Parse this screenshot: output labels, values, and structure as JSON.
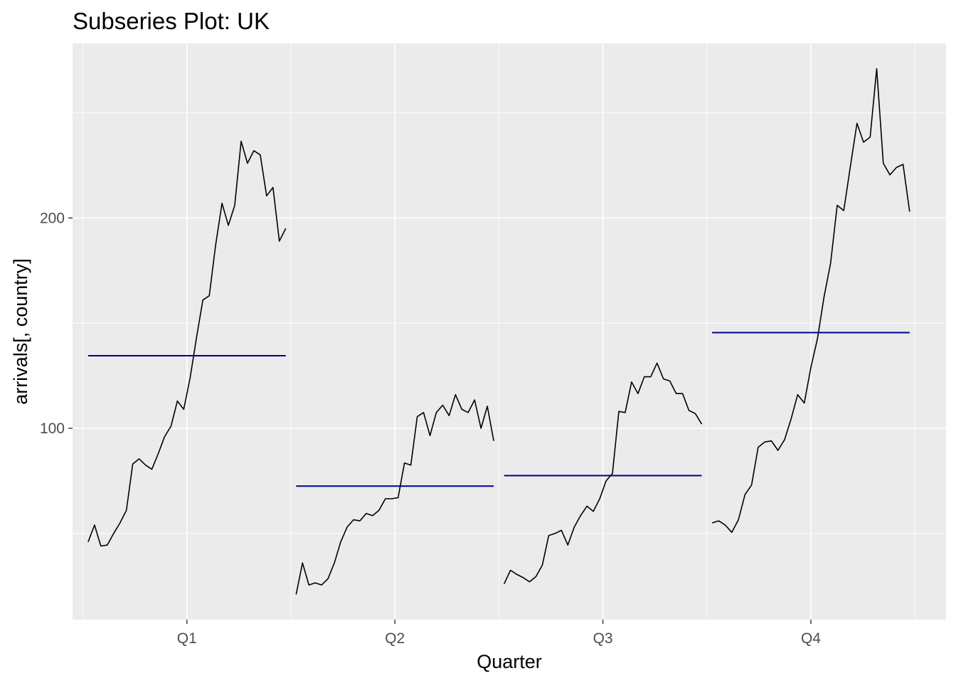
{
  "chart_data": {
    "type": "line",
    "title": "Subseries Plot: UK",
    "xlabel": "Quarter",
    "ylabel": "arrivals[, country]",
    "categories": [
      "Q1",
      "Q2",
      "Q3",
      "Q4"
    ],
    "y_ticks": [
      100,
      200
    ],
    "ylim": [
      9,
      283
    ],
    "grid": true,
    "mean_line_color": "#00008b",
    "series_line_color": "#000000",
    "panel_background": "#ebebeb",
    "subseries": [
      {
        "quarter": "Q1",
        "mean": 134.5,
        "values": [
          46.0,
          54.0,
          44.0,
          44.5,
          50.0,
          55.0,
          61.0,
          83.0,
          85.5,
          82.5,
          80.5,
          88.0,
          96.0,
          101.0,
          113.0,
          109.0,
          124.0,
          143.0,
          161.0,
          163.0,
          187.0,
          207.0,
          196.5,
          206.0,
          236.5,
          226.0,
          232.0,
          230.0,
          210.5,
          214.5,
          189.0,
          195.0
        ]
      },
      {
        "quarter": "Q2",
        "mean": 72.5,
        "values": [
          21.0,
          36.0,
          25.5,
          26.5,
          25.5,
          28.5,
          36.0,
          46.0,
          53.0,
          56.5,
          56.0,
          59.5,
          58.5,
          61.0,
          66.5,
          66.5,
          67.0,
          83.5,
          82.5,
          105.5,
          107.5,
          96.5,
          107.5,
          111.0,
          106.0,
          116.0,
          109.0,
          107.5,
          113.5,
          100.0,
          110.5,
          94.0
        ]
      },
      {
        "quarter": "Q3",
        "mean": 77.5,
        "values": [
          26.0,
          32.5,
          30.5,
          29.0,
          27.0,
          29.5,
          35.0,
          49.0,
          50.0,
          51.5,
          44.5,
          53.0,
          58.5,
          63.0,
          60.5,
          66.5,
          75.0,
          78.5,
          108.0,
          107.5,
          122.0,
          116.5,
          124.5,
          124.5,
          131.0,
          123.5,
          122.5,
          116.5,
          116.5,
          108.5,
          107.0,
          102.0
        ]
      },
      {
        "quarter": "Q4",
        "mean": 145.5,
        "values": [
          55.0,
          56.0,
          54.0,
          50.5,
          56.5,
          68.5,
          73.0,
          91.0,
          93.5,
          94.0,
          89.5,
          94.5,
          104.5,
          116.0,
          112.0,
          129.0,
          142.5,
          162.5,
          178.5,
          206.0,
          203.5,
          224.5,
          245.0,
          236.0,
          238.5,
          271.0,
          226.0,
          220.5,
          224.0,
          225.5,
          203.0
        ]
      }
    ]
  }
}
